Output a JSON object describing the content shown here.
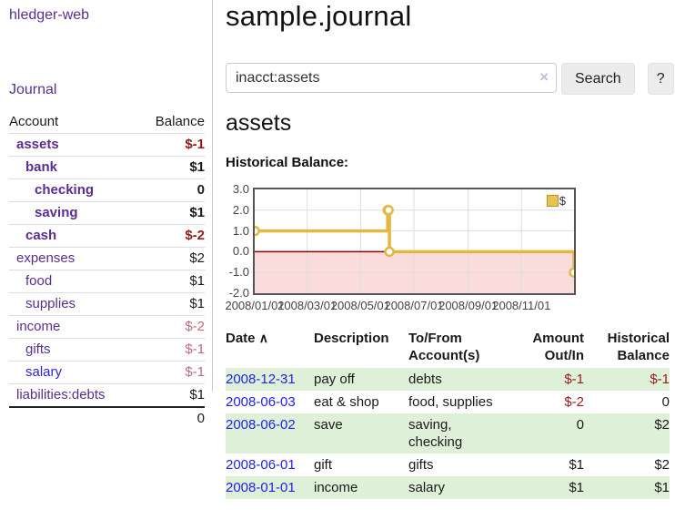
{
  "app": {
    "title": "hledger-web"
  },
  "sidebar": {
    "nav": {
      "journal": "Journal"
    },
    "headers": {
      "account": "Account",
      "balance": "Balance"
    },
    "accounts": [
      {
        "label": "assets",
        "balance": "$-1"
      },
      {
        "label": "bank",
        "balance": "$1"
      },
      {
        "label": "checking",
        "balance": "0"
      },
      {
        "label": "saving",
        "balance": "$1"
      },
      {
        "label": "cash",
        "balance": "$-2"
      },
      {
        "label": "expenses",
        "balance": "$2"
      },
      {
        "label": "food",
        "balance": "$1"
      },
      {
        "label": "supplies",
        "balance": "$1"
      },
      {
        "label": "income",
        "balance": "$-2"
      },
      {
        "label": "gifts",
        "balance": "$-1"
      },
      {
        "label": "salary",
        "balance": "$-1"
      },
      {
        "label": "liabilities:debts",
        "balance": "$1"
      }
    ],
    "total": "0"
  },
  "main": {
    "title": "sample.journal",
    "search": {
      "value": "inacct:assets",
      "clear_icon": "×",
      "search_button": "Search",
      "help_button": "?"
    },
    "account_heading": "assets",
    "chart_heading": "Historical Balance:"
  },
  "chart_data": {
    "type": "line",
    "step": true,
    "title": "Historical Balance:",
    "series": [
      {
        "name": "$",
        "color": "#e2b844",
        "points": [
          {
            "date": "2008-01-01",
            "value": 1
          },
          {
            "date": "2008-06-01",
            "value": 2
          },
          {
            "date": "2008-06-02",
            "value": 2
          },
          {
            "date": "2008-06-03",
            "value": 0
          },
          {
            "date": "2008-12-31",
            "value": -1
          }
        ]
      }
    ],
    "x_range": [
      "2008-01-01",
      "2008-12-31"
    ],
    "x_tick_labels": [
      "2008/01/01",
      "2008/03/01",
      "2008/05/01",
      "2008/07/01",
      "2008/09/01",
      "2008/11/01"
    ],
    "y_ticks": [
      3.0,
      2.0,
      1.0,
      0.0,
      -1.0,
      -2.0
    ],
    "ylim": [
      -2,
      3
    ],
    "grid": true,
    "legend": {
      "label": "$",
      "position": "top-right"
    },
    "negative_region_color": "#fbdcdc",
    "zero_line_color": "#8b0000",
    "grid_color": "#ddd"
  },
  "register": {
    "headers": {
      "date": "Date",
      "sort_icon": "∧",
      "description": "Description",
      "accounts": "To/From Account(s)",
      "amount": "Amount Out/In",
      "balance": "Historical Balance"
    },
    "rows": [
      {
        "date": "2008-12-31",
        "description": "pay off",
        "accounts": "debts",
        "amount": "$-1",
        "balance": "$-1"
      },
      {
        "date": "2008-06-03",
        "description": "eat & shop",
        "accounts": "food, supplies",
        "amount": "$-2",
        "balance": "0"
      },
      {
        "date": "2008-06-02",
        "description": "save",
        "accounts": "saving,\nchecking",
        "amount": "0",
        "balance": "$2"
      },
      {
        "date": "2008-06-01",
        "description": "gift",
        "accounts": "gifts",
        "amount": "$1",
        "balance": "$2"
      },
      {
        "date": "2008-01-01",
        "description": "income",
        "accounts": "salary",
        "amount": "$1",
        "balance": "$1"
      }
    ]
  }
}
